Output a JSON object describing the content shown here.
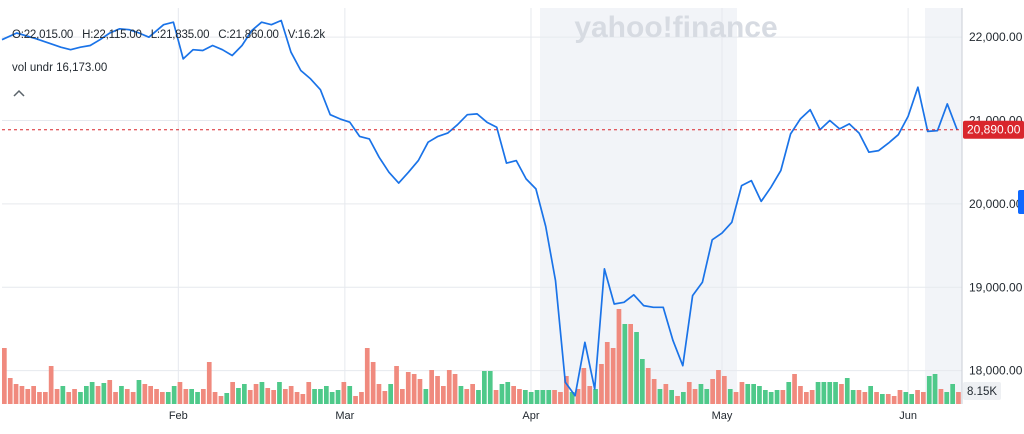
{
  "brand": {
    "watermark": "yahoo!finance"
  },
  "ohlc": {
    "open": "O:22,015.00",
    "high": "H:22,115.00",
    "low": "L:21,835.00",
    "close": "C:21,860.00",
    "volume": "V:16.2k"
  },
  "volume_legend": {
    "label": "vol undr",
    "value": "16,173.00"
  },
  "collapse_icon": "chevron-up-icon",
  "colors": {
    "price_line": "#1a73e8",
    "volume_up": "#4fc98a",
    "volume_down": "#f08a7e",
    "last_price_badge": "#d9262c",
    "highlight_band": "#f2f4f8"
  },
  "chart_data": {
    "type": "line",
    "price_axis": {
      "ylim": [
        17600,
        22350
      ],
      "ticks": [
        "22,000.00",
        "21,000.00",
        "20,000.00",
        "19,000.00",
        "18,000.00"
      ],
      "tick_values": [
        22000,
        21000,
        20000,
        19000,
        18000
      ]
    },
    "x_ticks": [
      {
        "label": "Feb",
        "idx": 36
      },
      {
        "label": "Mar",
        "idx": 70
      },
      {
        "label": "Apr",
        "idx": 108
      },
      {
        "label": "May",
        "idx": 147
      },
      {
        "label": "Jun",
        "idx": 185
      }
    ],
    "last_price": {
      "label": "20,890.00",
      "value": 20890
    },
    "volume_last_label": "8.15K",
    "series": [
      {
        "points": [
          [
            0,
            21970
          ],
          [
            3,
            22050
          ],
          [
            7,
            21980
          ],
          [
            10,
            21920
          ],
          [
            12,
            21880
          ],
          [
            14,
            21850
          ],
          [
            16,
            21880
          ],
          [
            18,
            21900
          ],
          [
            20,
            21970
          ],
          [
            22,
            22050
          ],
          [
            24,
            22100
          ],
          [
            26,
            22090
          ],
          [
            28,
            22050
          ],
          [
            30,
            22000
          ],
          [
            33,
            22150
          ],
          [
            35,
            22180
          ],
          [
            37,
            21740
          ],
          [
            39,
            21850
          ],
          [
            41,
            21840
          ],
          [
            43,
            21900
          ],
          [
            45,
            21850
          ],
          [
            47,
            21780
          ],
          [
            49,
            21900
          ],
          [
            51,
            22080
          ],
          [
            53,
            22180
          ],
          [
            55,
            22150
          ],
          [
            57,
            22200
          ],
          [
            59,
            21820
          ],
          [
            61,
            21600
          ],
          [
            63,
            21500
          ],
          [
            65,
            21370
          ],
          [
            67,
            21070
          ],
          [
            69,
            21020
          ],
          [
            71,
            20980
          ],
          [
            73,
            20810
          ],
          [
            75,
            20780
          ],
          [
            77,
            20560
          ],
          [
            79,
            20380
          ],
          [
            81,
            20250
          ],
          [
            83,
            20380
          ],
          [
            85,
            20520
          ],
          [
            87,
            20740
          ],
          [
            89,
            20810
          ],
          [
            91,
            20850
          ],
          [
            93,
            20950
          ],
          [
            95,
            21070
          ],
          [
            97,
            21080
          ],
          [
            99,
            20980
          ],
          [
            101,
            20920
          ],
          [
            103,
            20490
          ],
          [
            105,
            20520
          ],
          [
            107,
            20300
          ],
          [
            109,
            20180
          ],
          [
            111,
            19730
          ],
          [
            113,
            19080
          ],
          [
            115,
            17860
          ],
          [
            117,
            17700
          ],
          [
            119,
            18340
          ],
          [
            121,
            17780
          ],
          [
            123,
            19220
          ],
          [
            125,
            18800
          ],
          [
            127,
            18820
          ],
          [
            129,
            18910
          ],
          [
            131,
            18780
          ],
          [
            133,
            18760
          ],
          [
            135,
            18760
          ],
          [
            137,
            18360
          ],
          [
            139,
            18060
          ],
          [
            141,
            18900
          ],
          [
            143,
            19060
          ],
          [
            145,
            19570
          ],
          [
            147,
            19650
          ],
          [
            149,
            19780
          ],
          [
            151,
            20220
          ],
          [
            153,
            20280
          ],
          [
            155,
            20030
          ],
          [
            157,
            20200
          ],
          [
            159,
            20400
          ],
          [
            161,
            20840
          ],
          [
            163,
            21020
          ],
          [
            165,
            21130
          ],
          [
            167,
            20890
          ],
          [
            169,
            21000
          ],
          [
            171,
            20900
          ],
          [
            173,
            20960
          ],
          [
            175,
            20850
          ],
          [
            177,
            20620
          ],
          [
            179,
            20640
          ],
          [
            181,
            20730
          ],
          [
            183,
            20830
          ],
          [
            185,
            21050
          ],
          [
            187,
            21400
          ],
          [
            189,
            20870
          ],
          [
            191,
            20880
          ],
          [
            193,
            21200
          ],
          [
            195,
            20890
          ]
        ]
      },
      {
        "volume_bars": [
          [
            0,
            0.56,
            0
          ],
          [
            1,
            0.26,
            0
          ],
          [
            2,
            0.2,
            0
          ],
          [
            3,
            0.18,
            0
          ],
          [
            4,
            0.15,
            0
          ],
          [
            5,
            0.18,
            0
          ],
          [
            6,
            0.12,
            0
          ],
          [
            7,
            0.12,
            0
          ],
          [
            8,
            0.38,
            0
          ],
          [
            9,
            0.15,
            0
          ],
          [
            10,
            0.18,
            1
          ],
          [
            11,
            0.12,
            0
          ],
          [
            12,
            0.15,
            0
          ],
          [
            13,
            0.12,
            1
          ],
          [
            14,
            0.18,
            1
          ],
          [
            15,
            0.22,
            1
          ],
          [
            16,
            0.18,
            0
          ],
          [
            17,
            0.21,
            1
          ],
          [
            18,
            0.24,
            0
          ],
          [
            19,
            0.12,
            0
          ],
          [
            20,
            0.18,
            1
          ],
          [
            21,
            0.15,
            0
          ],
          [
            22,
            0.12,
            0
          ],
          [
            23,
            0.24,
            1
          ],
          [
            24,
            0.2,
            0
          ],
          [
            25,
            0.18,
            0
          ],
          [
            26,
            0.15,
            0
          ],
          [
            27,
            0.12,
            0
          ],
          [
            28,
            0.12,
            1
          ],
          [
            29,
            0.18,
            1
          ],
          [
            30,
            0.22,
            0
          ],
          [
            31,
            0.15,
            0
          ],
          [
            32,
            0.15,
            1
          ],
          [
            33,
            0.12,
            1
          ],
          [
            34,
            0.15,
            0
          ],
          [
            35,
            0.42,
            0
          ],
          [
            36,
            0.12,
            0
          ],
          [
            37,
            0.08,
            0
          ],
          [
            38,
            0.11,
            1
          ],
          [
            39,
            0.22,
            0
          ],
          [
            40,
            0.16,
            1
          ],
          [
            41,
            0.2,
            1
          ],
          [
            42,
            0.14,
            0
          ],
          [
            43,
            0.2,
            0
          ],
          [
            44,
            0.22,
            1
          ],
          [
            45,
            0.16,
            0
          ],
          [
            46,
            0.14,
            0
          ],
          [
            47,
            0.22,
            1
          ],
          [
            48,
            0.15,
            0
          ],
          [
            49,
            0.18,
            0
          ],
          [
            50,
            0.12,
            0
          ],
          [
            51,
            0.1,
            0
          ],
          [
            52,
            0.22,
            0
          ],
          [
            53,
            0.15,
            1
          ],
          [
            54,
            0.15,
            1
          ],
          [
            55,
            0.18,
            1
          ],
          [
            56,
            0.12,
            1
          ],
          [
            57,
            0.14,
            1
          ],
          [
            58,
            0.22,
            0
          ],
          [
            59,
            0.18,
            1
          ],
          [
            60,
            0.08,
            0
          ],
          [
            61,
            0.12,
            0
          ],
          [
            62,
            0.56,
            0
          ],
          [
            63,
            0.42,
            0
          ],
          [
            64,
            0.2,
            0
          ],
          [
            65,
            0.13,
            0
          ],
          [
            66,
            0.2,
            1
          ],
          [
            67,
            0.38,
            0
          ],
          [
            68,
            0.15,
            0
          ],
          [
            69,
            0.32,
            0
          ],
          [
            70,
            0.3,
            0
          ],
          [
            71,
            0.25,
            0
          ],
          [
            72,
            0.15,
            1
          ],
          [
            73,
            0.34,
            0
          ],
          [
            74,
            0.28,
            0
          ],
          [
            75,
            0.18,
            0
          ],
          [
            76,
            0.34,
            0
          ],
          [
            77,
            0.3,
            0
          ],
          [
            78,
            0.18,
            1
          ],
          [
            79,
            0.15,
            0
          ],
          [
            80,
            0.2,
            0
          ],
          [
            81,
            0.14,
            1
          ],
          [
            82,
            0.33,
            1
          ],
          [
            83,
            0.33,
            1
          ],
          [
            84,
            0.14,
            0
          ],
          [
            85,
            0.2,
            1
          ],
          [
            86,
            0.22,
            1
          ],
          [
            87,
            0.18,
            0
          ],
          [
            88,
            0.15,
            0
          ],
          [
            89,
            0.14,
            1
          ],
          [
            90,
            0.12,
            1
          ],
          [
            91,
            0.14,
            1
          ],
          [
            92,
            0.14,
            1
          ],
          [
            93,
            0.14,
            1
          ],
          [
            94,
            0.14,
            0
          ],
          [
            95,
            0.12,
            0
          ],
          [
            96,
            0.28,
            0
          ],
          [
            97,
            0.12,
            1
          ],
          [
            98,
            0.15,
            0
          ],
          [
            99,
            0.36,
            0
          ],
          [
            100,
            0.18,
            0
          ],
          [
            101,
            0.15,
            1
          ],
          [
            102,
            0.4,
            0
          ],
          [
            103,
            0.62,
            0
          ],
          [
            104,
            0.56,
            0
          ],
          [
            105,
            0.95,
            0
          ],
          [
            106,
            0.8,
            1
          ],
          [
            107,
            0.8,
            0
          ],
          [
            108,
            0.72,
            1
          ],
          [
            109,
            0.45,
            1
          ],
          [
            110,
            0.36,
            0
          ],
          [
            111,
            0.25,
            0
          ],
          [
            112,
            0.15,
            1
          ],
          [
            113,
            0.2,
            0
          ],
          [
            114,
            0.14,
            1
          ],
          [
            115,
            0.08,
            0
          ],
          [
            116,
            0.12,
            1
          ],
          [
            117,
            0.22,
            0
          ],
          [
            118,
            0.15,
            0
          ],
          [
            119,
            0.2,
            1
          ],
          [
            120,
            0.15,
            1
          ],
          [
            121,
            0.25,
            0
          ],
          [
            122,
            0.34,
            0
          ],
          [
            123,
            0.28,
            0
          ],
          [
            124,
            0.15,
            1
          ],
          [
            125,
            0.12,
            0
          ],
          [
            126,
            0.22,
            0
          ],
          [
            127,
            0.2,
            1
          ],
          [
            128,
            0.2,
            1
          ],
          [
            129,
            0.18,
            1
          ],
          [
            130,
            0.14,
            1
          ],
          [
            131,
            0.12,
            1
          ],
          [
            132,
            0.14,
            1
          ],
          [
            133,
            0.14,
            0
          ],
          [
            134,
            0.22,
            1
          ],
          [
            135,
            0.3,
            0
          ],
          [
            136,
            0.18,
            0
          ],
          [
            137,
            0.12,
            0
          ],
          [
            138,
            0.14,
            0
          ],
          [
            139,
            0.22,
            1
          ],
          [
            140,
            0.22,
            1
          ],
          [
            141,
            0.22,
            1
          ],
          [
            142,
            0.22,
            1
          ],
          [
            143,
            0.2,
            0
          ],
          [
            144,
            0.26,
            1
          ],
          [
            145,
            0.14,
            1
          ],
          [
            146,
            0.14,
            0
          ],
          [
            147,
            0.12,
            0
          ],
          [
            148,
            0.18,
            1
          ],
          [
            149,
            0.12,
            0
          ],
          [
            150,
            0.1,
            1
          ],
          [
            151,
            0.1,
            0
          ],
          [
            152,
            0.08,
            0
          ],
          [
            153,
            0.14,
            0
          ],
          [
            154,
            0.12,
            1
          ],
          [
            155,
            0.1,
            1
          ],
          [
            156,
            0.14,
            0
          ],
          [
            157,
            0.12,
            0
          ],
          [
            158,
            0.28,
            1
          ],
          [
            159,
            0.3,
            1
          ],
          [
            160,
            0.15,
            0
          ],
          [
            161,
            0.12,
            1
          ],
          [
            162,
            0.2,
            1
          ],
          [
            163,
            0.12,
            0
          ]
        ]
      }
    ]
  }
}
